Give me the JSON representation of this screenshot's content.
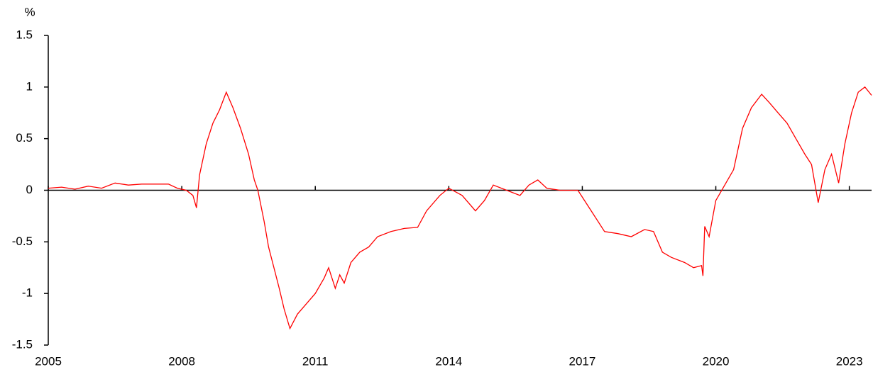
{
  "chart_data": {
    "type": "line",
    "y_label": "%",
    "x": [
      2005,
      2005.3,
      2005.6,
      2005.9,
      2006.2,
      2006.5,
      2006.8,
      2007.1,
      2007.4,
      2007.7,
      2007.9,
      2008.1,
      2008.25,
      2008.33,
      2008.4,
      2008.55,
      2008.7,
      2008.85,
      2009.0,
      2009.15,
      2009.32,
      2009.5,
      2009.63,
      2009.71,
      2009.85,
      2009.95,
      2010.1,
      2010.19,
      2010.3,
      2010.43,
      2010.6,
      2010.8,
      2011.0,
      2011.2,
      2011.3,
      2011.45,
      2011.55,
      2011.65,
      2011.8,
      2012.0,
      2012.2,
      2012.4,
      2012.7,
      2013.0,
      2013.3,
      2013.5,
      2013.8,
      2014.0,
      2014.3,
      2014.6,
      2014.8,
      2015.0,
      2015.3,
      2015.6,
      2015.8,
      2016.0,
      2016.2,
      2016.5,
      2016.9,
      2017.2,
      2017.5,
      2017.8,
      2018.1,
      2018.4,
      2018.6,
      2018.8,
      2019.0,
      2019.3,
      2019.5,
      2019.68,
      2019.71,
      2019.75,
      2019.85,
      2020.0,
      2020.2,
      2020.4,
      2020.6,
      2020.8,
      2021.03,
      2021.2,
      2021.4,
      2021.6,
      2021.8,
      2022.0,
      2022.15,
      2022.3,
      2022.45,
      2022.6,
      2022.76,
      2022.9,
      2023.05,
      2023.2,
      2023.35,
      2023.5
    ],
    "series": [
      {
        "color": "#ff0000",
        "values": [
          0.02,
          0.03,
          0.01,
          0.04,
          0.02,
          0.07,
          0.05,
          0.06,
          0.06,
          0.06,
          0.02,
          0.0,
          -0.05,
          -0.17,
          0.15,
          0.45,
          0.65,
          0.78,
          0.95,
          0.8,
          0.6,
          0.35,
          0.1,
          0.0,
          -0.3,
          -0.55,
          -0.8,
          -0.95,
          -1.15,
          -1.34,
          -1.2,
          -1.1,
          -1.0,
          -0.85,
          -0.75,
          -0.95,
          -0.82,
          -0.9,
          -0.7,
          -0.6,
          -0.55,
          -0.45,
          -0.4,
          -0.37,
          -0.36,
          -0.2,
          -0.05,
          0.02,
          -0.05,
          -0.2,
          -0.1,
          0.05,
          0.0,
          -0.05,
          0.05,
          0.1,
          0.02,
          0.0,
          0.0,
          -0.2,
          -0.4,
          -0.42,
          -0.45,
          -0.38,
          -0.4,
          -0.6,
          -0.65,
          -0.7,
          -0.75,
          -0.73,
          -0.83,
          -0.35,
          -0.45,
          -0.1,
          0.05,
          0.2,
          0.6,
          0.8,
          0.93,
          0.85,
          0.75,
          0.65,
          0.5,
          0.35,
          0.25,
          -0.12,
          0.2,
          0.35,
          0.07,
          0.45,
          0.75,
          0.95,
          1.0,
          0.92
        ]
      }
    ],
    "xlim": [
      2005,
      2023.5
    ],
    "xticks": [
      2005,
      2008,
      2011,
      2014,
      2017,
      2020,
      2023
    ],
    "ylim": [
      -1.5,
      1.5
    ],
    "yticks": [
      -1.5,
      -1,
      -0.5,
      0,
      0.5,
      1,
      1.5
    ],
    "grid": false
  }
}
